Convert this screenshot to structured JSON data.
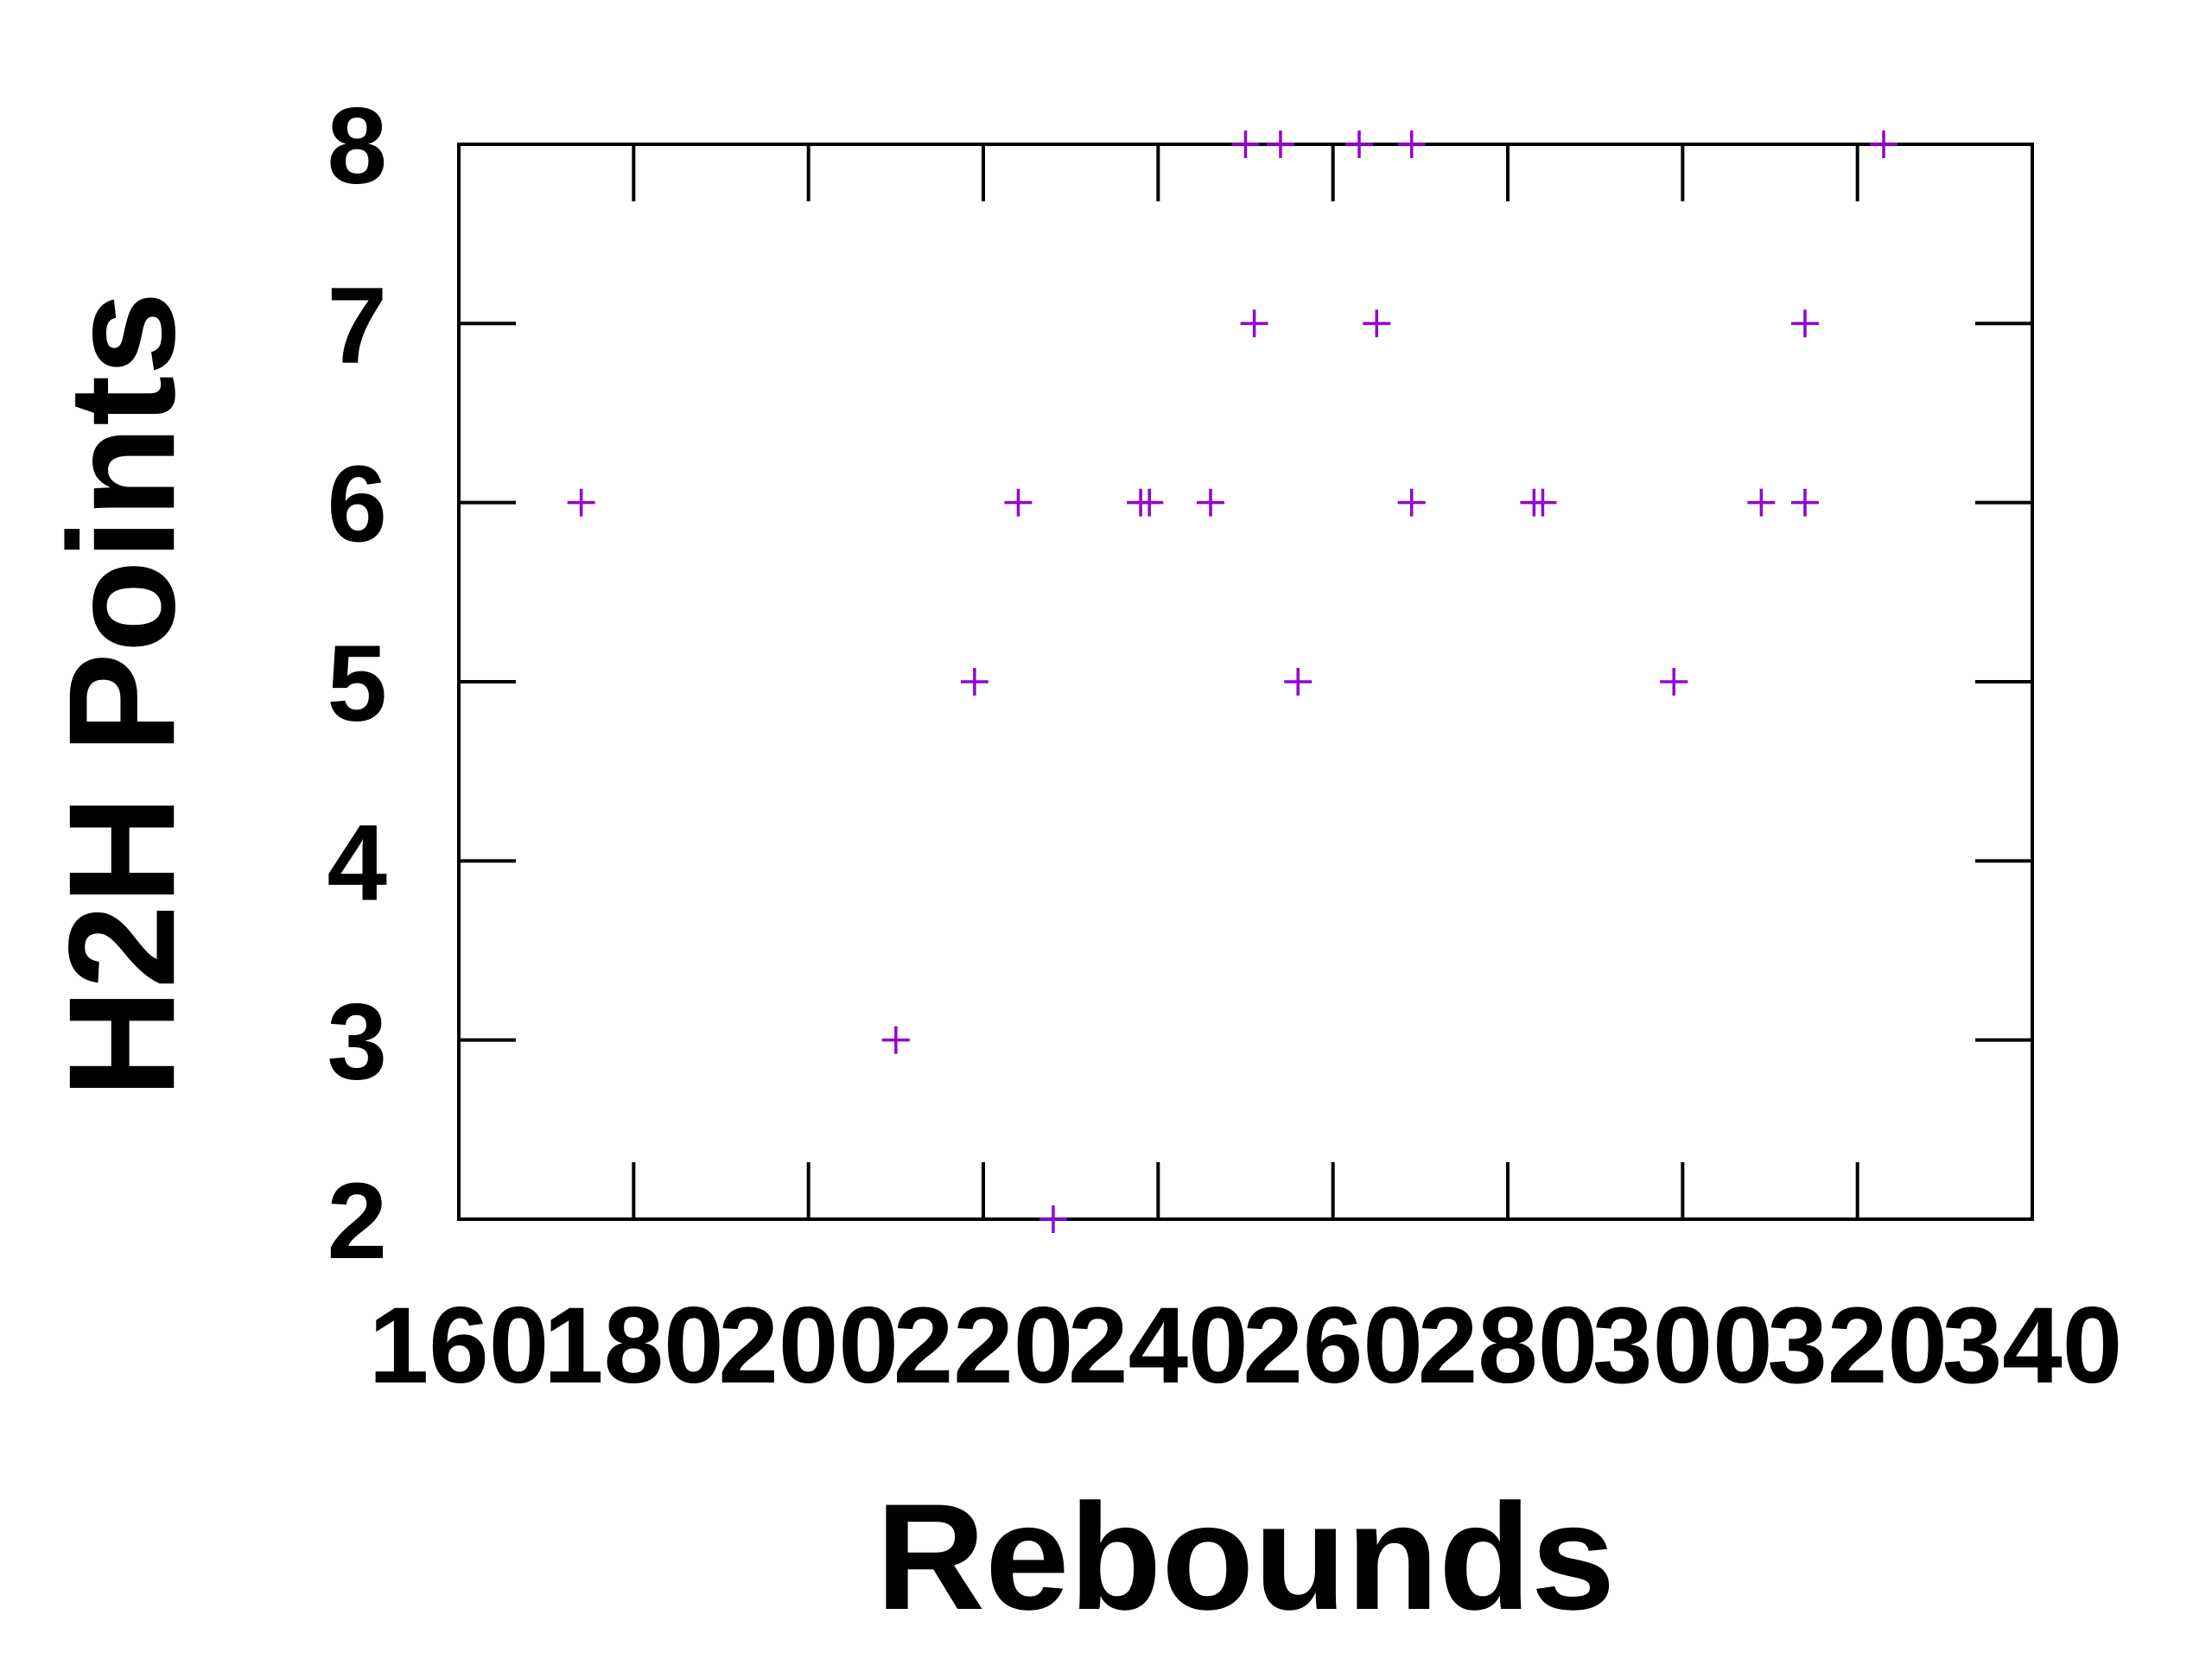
{
  "chart_data": {
    "type": "scatter",
    "xlabel": "Rebounds",
    "ylabel": "H2H Points",
    "xlim": [
      160,
      340
    ],
    "ylim": [
      2,
      8
    ],
    "x_ticks": [
      160,
      180,
      200,
      220,
      240,
      260,
      280,
      300,
      320,
      340
    ],
    "y_ticks": [
      2,
      3,
      4,
      5,
      6,
      7,
      8
    ],
    "marker": "+",
    "grid": false,
    "series": [
      {
        "color": "#9400d3",
        "points": [
          {
            "x": 174,
            "y": 6
          },
          {
            "x": 210,
            "y": 3
          },
          {
            "x": 219,
            "y": 5
          },
          {
            "x": 224,
            "y": 6
          },
          {
            "x": 228,
            "y": 2
          },
          {
            "x": 238,
            "y": 6
          },
          {
            "x": 239,
            "y": 6
          },
          {
            "x": 246,
            "y": 6
          },
          {
            "x": 250,
            "y": 8
          },
          {
            "x": 251,
            "y": 7
          },
          {
            "x": 254,
            "y": 8
          },
          {
            "x": 256,
            "y": 5
          },
          {
            "x": 263,
            "y": 8
          },
          {
            "x": 265,
            "y": 7
          },
          {
            "x": 269,
            "y": 8
          },
          {
            "x": 269,
            "y": 6
          },
          {
            "x": 283,
            "y": 6
          },
          {
            "x": 284,
            "y": 6
          },
          {
            "x": 299,
            "y": 5
          },
          {
            "x": 309,
            "y": 6
          },
          {
            "x": 314,
            "y": 7
          },
          {
            "x": 314,
            "y": 6
          },
          {
            "x": 323,
            "y": 8
          }
        ]
      }
    ]
  }
}
